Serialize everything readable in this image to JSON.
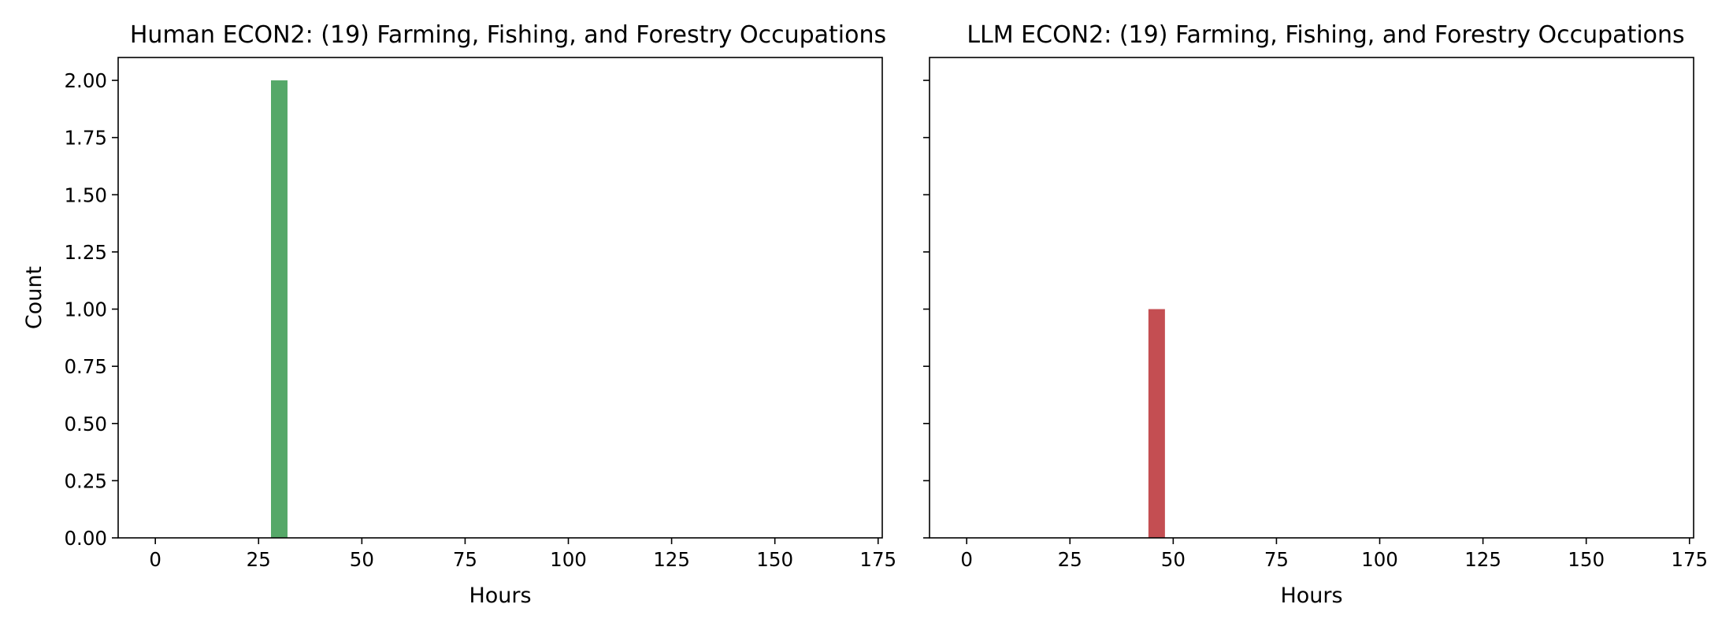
{
  "chart_data": [
    {
      "type": "bar",
      "title": "Human ECON2: (19) Farming, Fishing, and Forestry Occupations",
      "xlabel": "Hours",
      "ylabel": "Count",
      "xlim": [
        -9,
        176
      ],
      "ylim": [
        0,
        2.1
      ],
      "xticks": [
        0,
        25,
        50,
        75,
        100,
        125,
        150,
        175
      ],
      "yticks": [
        0.0,
        0.25,
        0.5,
        0.75,
        1.0,
        1.25,
        1.5,
        1.75,
        2.0
      ],
      "ytick_labels": [
        "0.00",
        "0.25",
        "0.50",
        "0.75",
        "1.00",
        "1.25",
        "1.50",
        "1.75",
        "2.00"
      ],
      "color": "#55a868",
      "bars": [
        {
          "x0": 28,
          "x1": 32,
          "value": 2
        }
      ],
      "grid": false,
      "legend": "none"
    },
    {
      "type": "bar",
      "title": "LLM ECON2: (19) Farming, Fishing, and Forestry Occupations",
      "xlabel": "Hours",
      "ylabel": "",
      "xlim": [
        -9,
        176
      ],
      "ylim": [
        0,
        2.1
      ],
      "xticks": [
        0,
        25,
        50,
        75,
        100,
        125,
        150,
        175
      ],
      "yticks": [
        0.0,
        0.25,
        0.5,
        0.75,
        1.0,
        1.25,
        1.5,
        1.75,
        2.0
      ],
      "ytick_labels": [],
      "color": "#c44e52",
      "bars": [
        {
          "x0": 44,
          "x1": 48,
          "value": 1
        }
      ],
      "grid": false,
      "legend": "none"
    }
  ]
}
